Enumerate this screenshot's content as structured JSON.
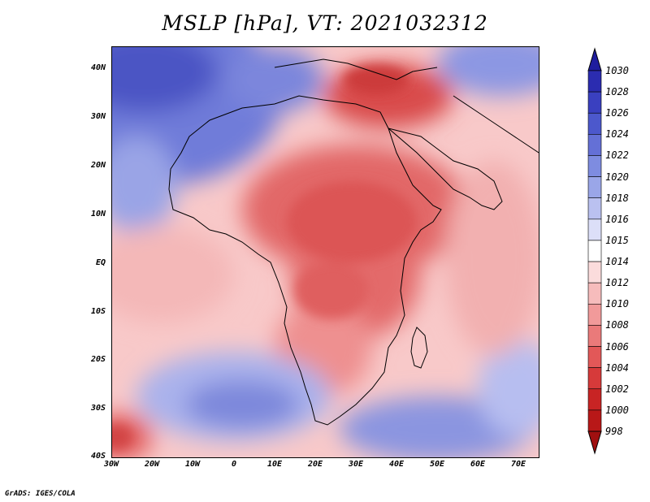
{
  "title": "MSLP [hPa], VT: 2021032312",
  "footer": "GrADS: IGES/COLA",
  "map": {
    "variable": "MSLP",
    "units": "hPa",
    "valid_time": "2021032312",
    "lat_labels": [
      "40N",
      "30N",
      "20N",
      "10N",
      "EQ",
      "10S",
      "20S",
      "30S",
      "40S"
    ],
    "lon_labels": [
      "30W",
      "20W",
      "10W",
      "0",
      "10E",
      "20E",
      "30E",
      "40E",
      "50E",
      "60E",
      "70E"
    ]
  },
  "colorbar": {
    "levels": [
      "1030",
      "1028",
      "1026",
      "1024",
      "1022",
      "1020",
      "1018",
      "1016",
      "1015",
      "1014",
      "1012",
      "1010",
      "1008",
      "1006",
      "1004",
      "1002",
      "1000",
      "998"
    ],
    "colors": [
      "#1f1d9e",
      "#2b2cb0",
      "#3a40c0",
      "#4c58cc",
      "#6470d6",
      "#7e8ce0",
      "#9aa6e8",
      "#bac1f0",
      "#dcdff8",
      "#ffffff",
      "#fbdcdc",
      "#f6bcbc",
      "#f19a9a",
      "#ea7a7a",
      "#e25858",
      "#d63a3a",
      "#c82424",
      "#b81818",
      "#a01010"
    ]
  }
}
